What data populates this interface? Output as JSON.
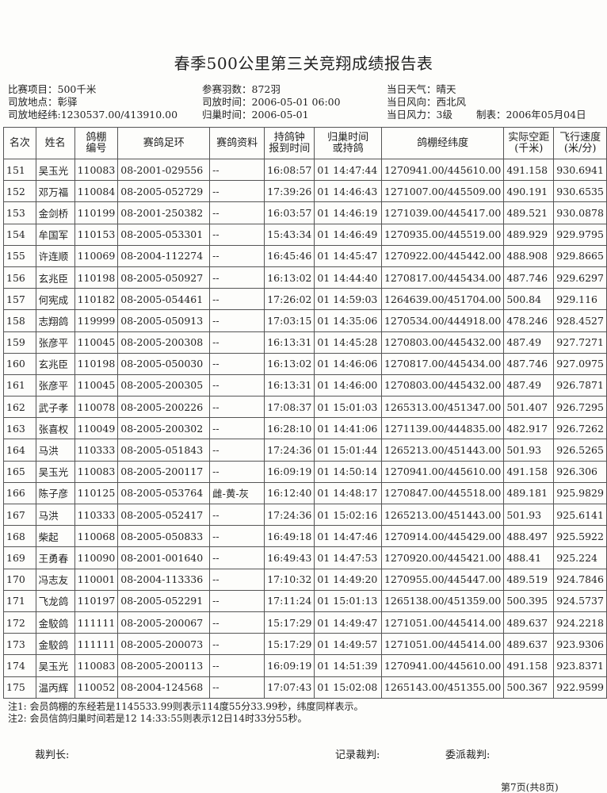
{
  "title": "春季500公里第三关竞翔成绩报告表",
  "info": {
    "col1": [
      "比赛项目：500千米",
      "司放地点：彰驿",
      "司放地经纬:1230537.00/413910.00"
    ],
    "col2": [
      "参赛羽数：872羽",
      "司放时间：2006-05-01 06:00",
      "归巢时间：2006-05-01"
    ],
    "col3": [
      "当日天气：晴天",
      "当日风向：西北风",
      "当日风力：3级"
    ],
    "made_date": "制表：2006年05月04日"
  },
  "table": {
    "headers": [
      "名次",
      "姓名",
      "鸽棚\n编号",
      "赛鸽足环",
      "赛鸽资料",
      "持鸽钟\n报到时间",
      "归巢时间\n或持鸽",
      "鸽棚经纬度",
      "实际空距\n(千米)",
      "飞行速度\n(米/分)"
    ],
    "rows": [
      [
        "151",
        "吴玉光",
        "110083",
        "08-2001-029556",
        "--",
        "16:08:57",
        "01 14:47:44",
        "1270941.00/445610.00",
        "491.158",
        "930.6941"
      ],
      [
        "152",
        "邓万福",
        "110084",
        "08-2005-052729",
        "--",
        "17:39:26",
        "01 14:46:43",
        "1271007.00/445509.00",
        "490.191",
        "930.6535"
      ],
      [
        "153",
        "金剑桥",
        "110199",
        "08-2001-250382",
        "--",
        "16:03:57",
        "01 14:46:19",
        "1271039.00/445417.00",
        "489.521",
        "930.0878"
      ],
      [
        "154",
        "牟国军",
        "110153",
        "08-2005-053301",
        "--",
        "15:43:34",
        "01 14:46:49",
        "1270935.00/445519.00",
        "489.929",
        "929.9795"
      ],
      [
        "155",
        "许连顺",
        "110069",
        "08-2004-112274",
        "--",
        "16:45:46",
        "01 14:45:47",
        "1270922.00/445442.00",
        "488.908",
        "929.8665"
      ],
      [
        "156",
        "玄兆臣",
        "110198",
        "08-2005-050927",
        "--",
        "16:13:02",
        "01 14:44:40",
        "1270817.00/445434.00",
        "487.746",
        "929.6297"
      ],
      [
        "157",
        "何宪成",
        "110182",
        "08-2005-054461",
        "--",
        "17:26:02",
        "01 14:59:03",
        "1264639.00/451704.00",
        "500.84",
        "929.116"
      ],
      [
        "158",
        "志翔鸽",
        "119999",
        "08-2005-050913",
        "--",
        "17:03:15",
        "01 14:35:06",
        "1270534.00/444918.00",
        "478.246",
        "928.4527"
      ],
      [
        "159",
        "张彦平",
        "110045",
        "08-2005-200308",
        "--",
        "16:13:31",
        "01 14:45:28",
        "1270803.00/445432.00",
        "487.49",
        "927.7271"
      ],
      [
        "160",
        "玄兆臣",
        "110198",
        "08-2005-050030",
        "--",
        "16:13:02",
        "01 14:46:06",
        "1270817.00/445434.00",
        "487.746",
        "927.0975"
      ],
      [
        "161",
        "张彦平",
        "110045",
        "08-2005-200305",
        "--",
        "16:13:31",
        "01 14:46:00",
        "1270803.00/445432.00",
        "487.49",
        "926.7871"
      ],
      [
        "162",
        "武子孝",
        "110078",
        "08-2005-200226",
        "--",
        "17:08:37",
        "01 15:01:03",
        "1265313.00/451347.00",
        "501.407",
        "926.7295"
      ],
      [
        "163",
        "张喜权",
        "110049",
        "08-2005-200302",
        "--",
        "16:28:10",
        "01 14:41:06",
        "1271139.00/444835.00",
        "482.917",
        "926.7262"
      ],
      [
        "164",
        "马洪",
        "110333",
        "08-2005-051843",
        "--",
        "17:24:36",
        "01 15:01:44",
        "1265213.00/451443.00",
        "501.93",
        "926.5265"
      ],
      [
        "165",
        "吴玉光",
        "110083",
        "08-2005-200117",
        "--",
        "16:09:19",
        "01 14:50:14",
        "1270941.00/445610.00",
        "491.158",
        "926.306"
      ],
      [
        "166",
        "陈子彦",
        "110125",
        "08-2005-053764",
        "雌-黄-灰",
        "16:12:40",
        "01 14:48:17",
        "1270847.00/445518.00",
        "489.181",
        "925.9829"
      ],
      [
        "167",
        "马洪",
        "110333",
        "08-2005-052417",
        "--",
        "17:24:36",
        "01 15:02:16",
        "1265213.00/451443.00",
        "501.93",
        "925.6141"
      ],
      [
        "168",
        "柴起",
        "110068",
        "08-2005-050833",
        "--",
        "16:49:18",
        "01 14:47:46",
        "1270914.00/445429.00",
        "488.497",
        "925.5922"
      ],
      [
        "169",
        "王勇春",
        "110090",
        "08-2001-001640",
        "--",
        "16:49:43",
        "01 14:47:53",
        "1270920.00/445421.00",
        "488.41",
        "925.224"
      ],
      [
        "170",
        "冯志友",
        "110001",
        "08-2004-113336",
        "--",
        "17:10:32",
        "01 14:49:20",
        "1270955.00/445447.00",
        "489.519",
        "924.7846"
      ],
      [
        "171",
        "飞龙鸽",
        "110197",
        "08-2005-052291",
        "--",
        "17:11:24",
        "01 15:01:13",
        "1265138.00/451359.00",
        "500.395",
        "924.5737"
      ],
      [
        "172",
        "金駮鸽",
        "111111",
        "08-2005-200067",
        "--",
        "15:17:29",
        "01 14:49:47",
        "1271051.00/445414.00",
        "489.637",
        "924.2218"
      ],
      [
        "173",
        "金駮鸽",
        "111111",
        "08-2005-200073",
        "--",
        "15:17:29",
        "01 14:49:57",
        "1271051.00/445414.00",
        "489.637",
        "923.9306"
      ],
      [
        "174",
        "吴玉光",
        "110083",
        "08-2005-200113",
        "--",
        "16:09:19",
        "01 14:51:39",
        "1270941.00/445610.00",
        "491.158",
        "923.8371"
      ],
      [
        "175",
        "温丙辉",
        "110052",
        "08-2004-124568",
        "--",
        "17:07:43",
        "01 15:02:08",
        "1265143.00/451355.00",
        "500.367",
        "922.9599"
      ]
    ]
  },
  "notes": [
    "注1: 会员鸽棚的东经若是1145533.99则表示114度55分33.99秒，纬度同样表示。",
    "注2: 会员信鸽归巢时间若是12 14:33:55则表示12日14时33分55秒。"
  ],
  "signatures": {
    "chief": "裁判长:",
    "recorder": "记录裁判:",
    "appointed": "委派裁判:"
  },
  "page_number": "第7页(共8页)"
}
